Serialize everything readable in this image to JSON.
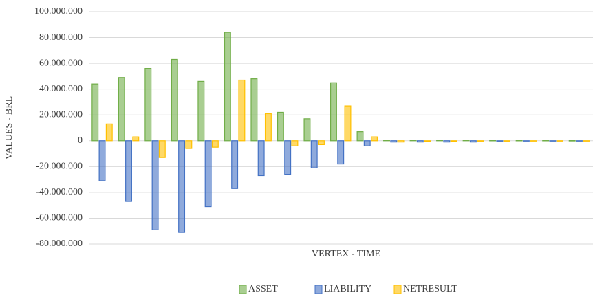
{
  "chart_data": {
    "type": "bar",
    "x_label": "VERTEX - TIME",
    "y_label": "VALUES - BRL",
    "categories": [
      null,
      null,
      null,
      null,
      null,
      null,
      null,
      null,
      null,
      null,
      null,
      null,
      null,
      null,
      null,
      null,
      null,
      null,
      null
    ],
    "series": [
      {
        "name": "ASSET",
        "color": "#70ad47",
        "values": [
          44000000,
          49000000,
          56000000,
          63000000,
          46000000,
          84000000,
          48000000,
          22000000,
          17000000,
          45000000,
          7000000,
          500000,
          300000,
          300000,
          300000,
          200000,
          200000,
          200000,
          100000
        ]
      },
      {
        "name": "LIABILITY",
        "color": "#4472c4",
        "values": [
          -31000000,
          -47000000,
          -69000000,
          -71000000,
          -51000000,
          -37000000,
          -27000000,
          -26000000,
          -21000000,
          -18000000,
          -4000000,
          -1000000,
          -1000000,
          -1000000,
          -1000000,
          -300000,
          -200000,
          -200000,
          -100000
        ]
      },
      {
        "name": "NETRESULT",
        "color": "#ffc000",
        "values": [
          13000000,
          3000000,
          -13000000,
          -6000000,
          -5000000,
          47000000,
          21000000,
          -4000000,
          -3000000,
          27000000,
          3000000,
          -1000000,
          -500000,
          -500000,
          -300000,
          -300000,
          -200000,
          -200000,
          -100000
        ]
      }
    ],
    "ylim": [
      -80000000,
      100000000
    ],
    "yticks": [
      {
        "value": -80000000,
        "label": "-80.000.000"
      },
      {
        "value": -60000000,
        "label": "-60.000.000"
      },
      {
        "value": -40000000,
        "label": "-40.000.000"
      },
      {
        "value": -20000000,
        "label": "-20.000.000"
      },
      0,
      {
        "value": 20000000,
        "label": "20.000.000"
      },
      {
        "value": 40000000,
        "label": "40.000.000"
      },
      {
        "value": 60000000,
        "label": "60.000.000"
      },
      {
        "value": 80000000,
        "label": "80.000.000"
      },
      {
        "value": 100000000,
        "label": "100.000.000"
      }
    ],
    "grid": true,
    "legend": "bottom"
  }
}
